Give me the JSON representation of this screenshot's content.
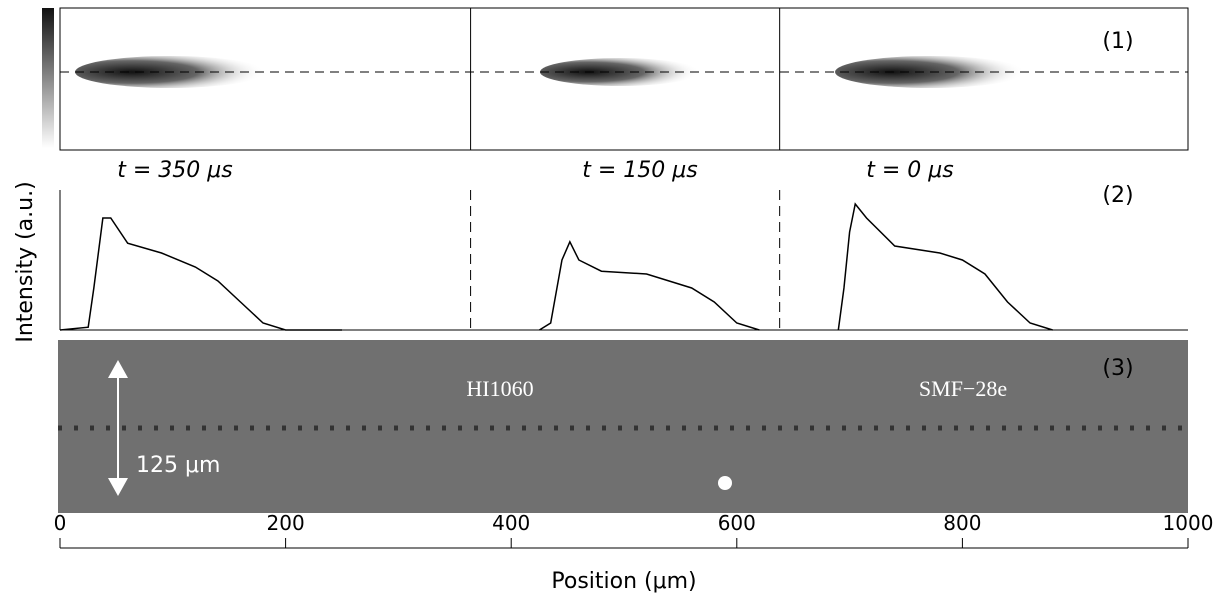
{
  "chart_data": {
    "type": "line",
    "y_label": "Intensity (a.u.)",
    "x_label": "Position (μm)",
    "xlim": [
      0,
      1000
    ],
    "xticks": [
      0,
      200,
      400,
      600,
      800,
      1000
    ],
    "ylim": [
      0,
      1
    ],
    "panel_labels": [
      "(1)",
      "(2)",
      "(3)"
    ],
    "time_labels": [
      "t = 350 μs",
      "t = 150 μs",
      "t = 0 μs"
    ],
    "dividers": [
      364,
      638
    ],
    "fiber_labels": [
      "HI1060",
      "SMF−28e"
    ],
    "scale_label": "125 μm",
    "series": [
      {
        "name": "t = 350 μs",
        "color": "#000000",
        "x": [
          0,
          25,
          30,
          38,
          45,
          60,
          90,
          120,
          140,
          160,
          180,
          200,
          250
        ],
        "values": [
          0,
          0.02,
          0.3,
          0.8,
          0.8,
          0.62,
          0.55,
          0.45,
          0.35,
          0.2,
          0.05,
          0,
          0
        ]
      },
      {
        "name": "t = 150 μs",
        "color": "#000000",
        "x": [
          425,
          435,
          445,
          452,
          460,
          480,
          520,
          560,
          580,
          600,
          620
        ],
        "values": [
          0,
          0.05,
          0.5,
          0.63,
          0.5,
          0.42,
          0.4,
          0.3,
          0.2,
          0.05,
          0
        ]
      },
      {
        "name": "t = 0 μs",
        "color": "#000000",
        "x": [
          690,
          695,
          700,
          705,
          715,
          740,
          780,
          800,
          820,
          840,
          860,
          880
        ],
        "values": [
          0,
          0.3,
          0.7,
          0.9,
          0.8,
          0.6,
          0.55,
          0.5,
          0.4,
          0.2,
          0.05,
          0
        ]
      }
    ]
  }
}
